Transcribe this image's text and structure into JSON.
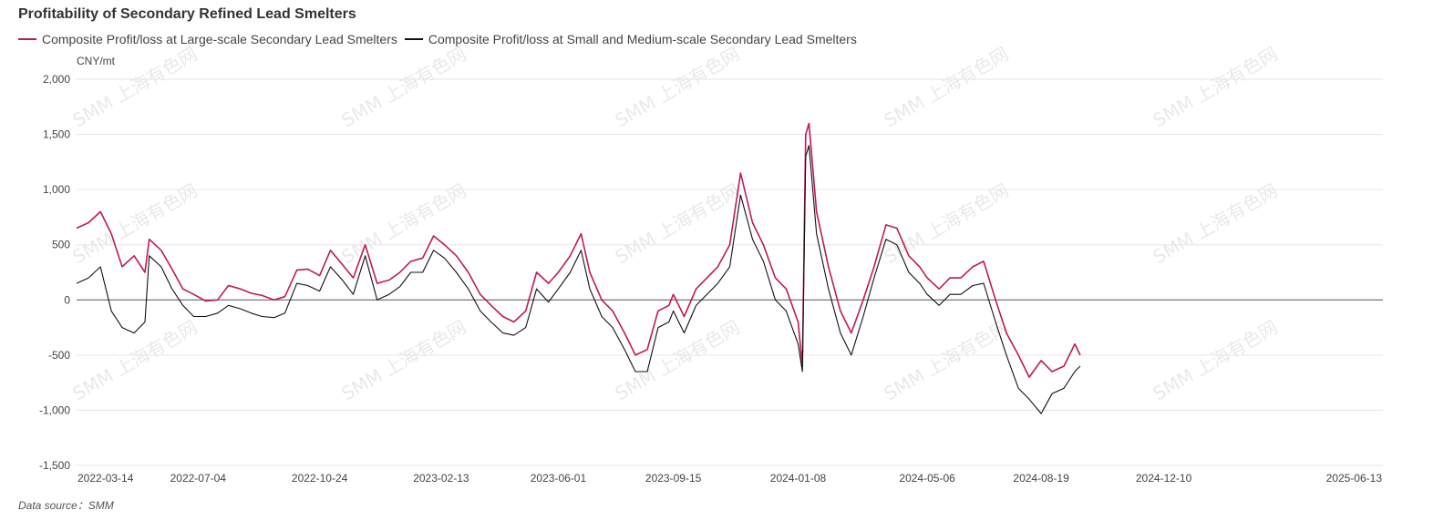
{
  "chart": {
    "title": "Profitability of Secondary Refined Lead Smelters",
    "unit": "CNY/mt",
    "source": "Data source：SMM",
    "watermark": "SMM 上海有色网"
  },
  "chart_data": {
    "type": "line",
    "title": "Profitability of Secondary Refined Lead Smelters",
    "ylabel": "CNY/mt",
    "ylim": [
      -1500,
      2000
    ],
    "xlim": [
      "2022-03-14",
      "2025-06-30"
    ],
    "yticks": [
      2000,
      1500,
      1000,
      500,
      0,
      -500,
      -1000,
      -1500
    ],
    "ytick_labels": [
      "2,000",
      "1,500",
      "1,000",
      "500",
      "0",
      "-500",
      "-1,000",
      "-1,500"
    ],
    "xtick_labels": [
      "2022-03-14",
      "2022-07-04",
      "2022-10-24",
      "2023-02-13",
      "2023-06-01",
      "2023-09-15",
      "2024-01-08",
      "2024-05-06",
      "2024-08-19",
      "2024-12-10",
      "2025-06-13"
    ],
    "grid": true,
    "legend_position": "top-left",
    "series": [
      {
        "name": "Composite Profit/loss at Large-scale Secondary Lead Smelters",
        "color": "#c0185a",
        "points": [
          [
            "2022-03-14",
            650
          ],
          [
            "2022-03-25",
            700
          ],
          [
            "2022-04-05",
            800
          ],
          [
            "2022-04-15",
            600
          ],
          [
            "2022-04-25",
            300
          ],
          [
            "2022-05-06",
            400
          ],
          [
            "2022-05-16",
            250
          ],
          [
            "2022-05-20",
            550
          ],
          [
            "2022-05-31",
            450
          ],
          [
            "2022-06-10",
            280
          ],
          [
            "2022-06-20",
            100
          ],
          [
            "2022-06-30",
            50
          ],
          [
            "2022-07-11",
            -10
          ],
          [
            "2022-07-22",
            0
          ],
          [
            "2022-08-01",
            130
          ],
          [
            "2022-08-12",
            100
          ],
          [
            "2022-08-22",
            60
          ],
          [
            "2022-09-01",
            40
          ],
          [
            "2022-09-12",
            0
          ],
          [
            "2022-09-22",
            30
          ],
          [
            "2022-10-03",
            270
          ],
          [
            "2022-10-13",
            280
          ],
          [
            "2022-10-24",
            220
          ],
          [
            "2022-11-03",
            450
          ],
          [
            "2022-11-14",
            320
          ],
          [
            "2022-11-24",
            200
          ],
          [
            "2022-12-05",
            500
          ],
          [
            "2022-12-16",
            150
          ],
          [
            "2022-12-27",
            180
          ],
          [
            "2023-01-06",
            250
          ],
          [
            "2023-01-16",
            350
          ],
          [
            "2023-01-27",
            380
          ],
          [
            "2023-02-06",
            580
          ],
          [
            "2023-02-16",
            500
          ],
          [
            "2023-02-27",
            400
          ],
          [
            "2023-03-10",
            250
          ],
          [
            "2023-03-21",
            50
          ],
          [
            "2023-03-31",
            -50
          ],
          [
            "2023-04-11",
            -150
          ],
          [
            "2023-04-21",
            -200
          ],
          [
            "2023-05-02",
            -100
          ],
          [
            "2023-05-12",
            250
          ],
          [
            "2023-05-23",
            150
          ],
          [
            "2023-06-01",
            250
          ],
          [
            "2023-06-12",
            400
          ],
          [
            "2023-06-22",
            600
          ],
          [
            "2023-06-30",
            250
          ],
          [
            "2023-07-11",
            0
          ],
          [
            "2023-07-21",
            -100
          ],
          [
            "2023-08-01",
            -300
          ],
          [
            "2023-08-11",
            -500
          ],
          [
            "2023-08-22",
            -450
          ],
          [
            "2023-09-01",
            -100
          ],
          [
            "2023-09-11",
            -50
          ],
          [
            "2023-09-15",
            50
          ],
          [
            "2023-09-25",
            -150
          ],
          [
            "2023-10-06",
            100
          ],
          [
            "2023-10-16",
            200
          ],
          [
            "2023-10-26",
            300
          ],
          [
            "2023-11-06",
            500
          ],
          [
            "2023-11-16",
            1150
          ],
          [
            "2023-11-27",
            700
          ],
          [
            "2023-12-07",
            500
          ],
          [
            "2023-12-18",
            200
          ],
          [
            "2023-12-28",
            100
          ],
          [
            "2024-01-08",
            -200
          ],
          [
            "2024-01-12",
            -600
          ],
          [
            "2024-01-15",
            1500
          ],
          [
            "2024-01-18",
            1600
          ],
          [
            "2024-01-25",
            800
          ],
          [
            "2024-02-05",
            300
          ],
          [
            "2024-02-16",
            -100
          ],
          [
            "2024-02-26",
            -300
          ],
          [
            "2024-03-08",
            0
          ],
          [
            "2024-03-18",
            300
          ],
          [
            "2024-03-29",
            680
          ],
          [
            "2024-04-08",
            650
          ],
          [
            "2024-04-19",
            400
          ],
          [
            "2024-04-29",
            300
          ],
          [
            "2024-05-06",
            200
          ],
          [
            "2024-05-17",
            100
          ],
          [
            "2024-05-27",
            200
          ],
          [
            "2024-06-06",
            200
          ],
          [
            "2024-06-17",
            300
          ],
          [
            "2024-06-27",
            350
          ],
          [
            "2024-07-08",
            0
          ],
          [
            "2024-07-18",
            -300
          ],
          [
            "2024-07-29",
            -500
          ],
          [
            "2024-08-08",
            -700
          ],
          [
            "2024-08-19",
            -550
          ],
          [
            "2024-08-29",
            -650
          ],
          [
            "2024-09-09",
            -600
          ],
          [
            "2024-09-19",
            -400
          ],
          [
            "2024-09-24",
            -500
          ]
        ]
      },
      {
        "name": "Composite Profit/loss at Small and Medium-scale Secondary Lead Smelters",
        "color": "#111111",
        "points": [
          [
            "2022-03-14",
            150
          ],
          [
            "2022-03-25",
            200
          ],
          [
            "2022-04-05",
            300
          ],
          [
            "2022-04-15",
            -100
          ],
          [
            "2022-04-25",
            -250
          ],
          [
            "2022-05-06",
            -300
          ],
          [
            "2022-05-16",
            -200
          ],
          [
            "2022-05-20",
            400
          ],
          [
            "2022-05-31",
            300
          ],
          [
            "2022-06-10",
            100
          ],
          [
            "2022-06-20",
            -50
          ],
          [
            "2022-06-30",
            -150
          ],
          [
            "2022-07-11",
            -150
          ],
          [
            "2022-07-22",
            -120
          ],
          [
            "2022-08-01",
            -50
          ],
          [
            "2022-08-12",
            -80
          ],
          [
            "2022-08-22",
            -120
          ],
          [
            "2022-09-01",
            -150
          ],
          [
            "2022-09-12",
            -160
          ],
          [
            "2022-09-22",
            -120
          ],
          [
            "2022-10-03",
            150
          ],
          [
            "2022-10-13",
            130
          ],
          [
            "2022-10-24",
            80
          ],
          [
            "2022-11-03",
            300
          ],
          [
            "2022-11-14",
            180
          ],
          [
            "2022-11-24",
            50
          ],
          [
            "2022-12-05",
            400
          ],
          [
            "2022-12-16",
            0
          ],
          [
            "2022-12-27",
            50
          ],
          [
            "2023-01-06",
            120
          ],
          [
            "2023-01-16",
            250
          ],
          [
            "2023-01-27",
            250
          ],
          [
            "2023-02-06",
            450
          ],
          [
            "2023-02-16",
            380
          ],
          [
            "2023-02-27",
            250
          ],
          [
            "2023-03-10",
            100
          ],
          [
            "2023-03-21",
            -100
          ],
          [
            "2023-03-31",
            -200
          ],
          [
            "2023-04-11",
            -300
          ],
          [
            "2023-04-21",
            -320
          ],
          [
            "2023-05-02",
            -250
          ],
          [
            "2023-05-12",
            100
          ],
          [
            "2023-05-23",
            -20
          ],
          [
            "2023-06-01",
            100
          ],
          [
            "2023-06-12",
            250
          ],
          [
            "2023-06-22",
            450
          ],
          [
            "2023-06-30",
            100
          ],
          [
            "2023-07-11",
            -150
          ],
          [
            "2023-07-21",
            -250
          ],
          [
            "2023-08-01",
            -450
          ],
          [
            "2023-08-11",
            -650
          ],
          [
            "2023-08-22",
            -650
          ],
          [
            "2023-09-01",
            -250
          ],
          [
            "2023-09-11",
            -200
          ],
          [
            "2023-09-15",
            -100
          ],
          [
            "2023-09-25",
            -300
          ],
          [
            "2023-10-06",
            -50
          ],
          [
            "2023-10-16",
            50
          ],
          [
            "2023-10-26",
            150
          ],
          [
            "2023-11-06",
            300
          ],
          [
            "2023-11-16",
            950
          ],
          [
            "2023-11-27",
            550
          ],
          [
            "2023-12-07",
            350
          ],
          [
            "2023-12-18",
            0
          ],
          [
            "2023-12-28",
            -100
          ],
          [
            "2024-01-08",
            -400
          ],
          [
            "2024-01-12",
            -650
          ],
          [
            "2024-01-15",
            1300
          ],
          [
            "2024-01-18",
            1400
          ],
          [
            "2024-01-25",
            600
          ],
          [
            "2024-02-05",
            100
          ],
          [
            "2024-02-16",
            -300
          ],
          [
            "2024-02-26",
            -500
          ],
          [
            "2024-03-08",
            -150
          ],
          [
            "2024-03-18",
            200
          ],
          [
            "2024-03-29",
            550
          ],
          [
            "2024-04-08",
            500
          ],
          [
            "2024-04-19",
            250
          ],
          [
            "2024-04-29",
            150
          ],
          [
            "2024-05-06",
            50
          ],
          [
            "2024-05-17",
            -50
          ],
          [
            "2024-05-27",
            50
          ],
          [
            "2024-06-06",
            50
          ],
          [
            "2024-06-17",
            130
          ],
          [
            "2024-06-27",
            150
          ],
          [
            "2024-07-08",
            -200
          ],
          [
            "2024-07-18",
            -500
          ],
          [
            "2024-07-29",
            -800
          ],
          [
            "2024-08-08",
            -900
          ],
          [
            "2024-08-19",
            -1030
          ],
          [
            "2024-08-29",
            -850
          ],
          [
            "2024-09-09",
            -800
          ],
          [
            "2024-09-19",
            -650
          ],
          [
            "2024-09-24",
            -600
          ]
        ]
      }
    ]
  }
}
